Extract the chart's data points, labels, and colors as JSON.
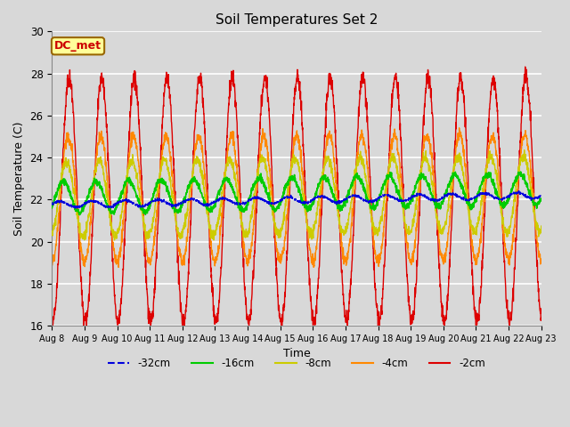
{
  "title": "Soil Temperatures Set 2",
  "xlabel": "Time",
  "ylabel": "Soil Temperature (C)",
  "ylim": [
    16,
    30
  ],
  "xlim": [
    0,
    15
  ],
  "plot_bg_color": "#d8d8d8",
  "fig_bg_color": "#d8d8d8",
  "grid_color": "#ffffff",
  "annotation_text": "DC_met",
  "annotation_bg": "#ffff99",
  "annotation_border": "#996600",
  "annotation_text_color": "#cc0000",
  "x_ticks": [
    0,
    1,
    2,
    3,
    4,
    5,
    6,
    7,
    8,
    9,
    10,
    11,
    12,
    13,
    14,
    15
  ],
  "x_tick_labels": [
    "Aug 8",
    "Aug 9",
    "Aug 10",
    "Aug 11",
    "Aug 12",
    "Aug 13",
    "Aug 14",
    "Aug 15",
    "Aug 16",
    "Aug 17",
    "Aug 18",
    "Aug 19",
    "Aug 20",
    "Aug 21",
    "Aug 22",
    "Aug 23"
  ],
  "y_ticks": [
    16,
    18,
    20,
    22,
    24,
    26,
    28,
    30
  ],
  "legend_entries": [
    "-32cm",
    "-16cm",
    "-8cm",
    "-4cm",
    "-2cm"
  ],
  "legend_colors": [
    "#0000dd",
    "#00cc00",
    "#cccc00",
    "#ff8800",
    "#dd0000"
  ],
  "num_days": 15,
  "points_per_day": 144
}
